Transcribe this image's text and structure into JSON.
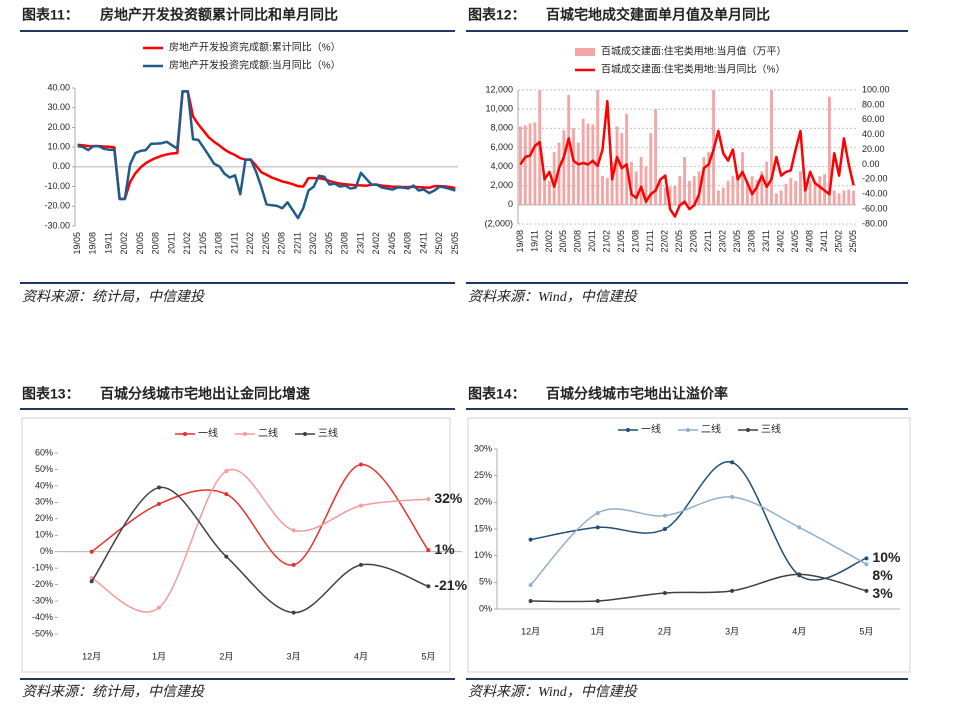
{
  "chart_data": [
    {
      "type": "line",
      "figure": "图表11：",
      "title": "房地产开发投资额累计同比和单月同比",
      "source": "资料来源：统计局，中信建投",
      "categories": [
        "19/05",
        null,
        null,
        "19/08",
        null,
        null,
        "19/11",
        null,
        null,
        "20/02",
        null,
        null,
        "20/05",
        null,
        null,
        "20/08",
        null,
        null,
        "20/11",
        null,
        null,
        "21/02",
        null,
        null,
        "21/05",
        null,
        null,
        "21/08",
        null,
        null,
        "21/11",
        null,
        null,
        "22/02",
        null,
        null,
        "22/05",
        null,
        null,
        "22/08",
        null,
        null,
        "22/11",
        null,
        null,
        "23/02",
        null,
        null,
        "23/05",
        null,
        null,
        "23/08",
        null,
        null,
        "23/11",
        null,
        null,
        "24/02",
        null,
        null,
        "24/05",
        null,
        null,
        "24/08",
        null,
        null,
        "24/11",
        null,
        null,
        "25/02",
        null,
        null,
        "25/05"
      ],
      "series": [
        {
          "name": "房地产开发投资完成额:累计同比（%）",
          "color": "#ff0000",
          "width": 2.5,
          "values": [
            11.2,
            10.9,
            10.6,
            10.5,
            10.5,
            10.3,
            10.2,
            9.9,
            -16.3,
            -16.3,
            -7.7,
            -3.3,
            -0.3,
            1.9,
            3.4,
            4.6,
            5.6,
            6.3,
            6.8,
            7.0,
            38.3,
            38.3,
            25.6,
            21.6,
            18.3,
            15.0,
            12.7,
            10.9,
            8.8,
            7.2,
            6.0,
            4.4,
            3.7,
            3.7,
            0.7,
            -2.7,
            -4.0,
            -5.4,
            -6.4,
            -7.4,
            -8.0,
            -8.8,
            -9.8,
            -10.0,
            -5.7,
            -5.7,
            -5.8,
            -6.2,
            -7.2,
            -7.9,
            -8.5,
            -8.8,
            -9.1,
            -9.3,
            -9.4,
            -9.6,
            -9.0,
            -9.0,
            -9.5,
            -9.8,
            -10.1,
            -10.1,
            -10.2,
            -10.2,
            -10.1,
            -10.3,
            -10.4,
            -10.6,
            -9.8,
            -9.8,
            -9.9,
            -10.3,
            -10.7
          ]
        },
        {
          "name": "房地产开发投资完成额:当月同比（%）",
          "color": "#1f5c8b",
          "width": 2.5,
          "values": [
            10.5,
            10.1,
            8.5,
            10.5,
            10.5,
            9.2,
            8.7,
            8.6,
            -16.3,
            -16.3,
            1.2,
            7.0,
            8.1,
            8.5,
            11.7,
            11.8,
            12.0,
            12.7,
            10.9,
            9.3,
            38.3,
            38.3,
            14.0,
            13.7,
            9.8,
            5.8,
            1.6,
            0.3,
            -3.5,
            -5.4,
            -4.3,
            -13.9,
            3.7,
            3.7,
            -2.4,
            -10.1,
            -19,
            -19.5,
            -19.8,
            -21,
            -18,
            -22,
            -26,
            -21,
            -12,
            -10,
            -4.5,
            -5,
            -9,
            -8.5,
            -10,
            -9.5,
            -11,
            -10.5,
            -3,
            -6,
            -9,
            -9,
            -10.5,
            -11,
            -11.5,
            -10.5,
            -10.5,
            -11,
            -9.5,
            -12,
            -11.5,
            -13.3,
            -12,
            -10,
            -10.5,
            -11.2,
            -12
          ]
        }
      ],
      "ylim": [
        -30,
        40
      ],
      "yticks": [
        {
          "value": -30,
          "label": "-30.00"
        },
        {
          "value": -20,
          "label": "-20.00"
        },
        {
          "value": -10,
          "label": "-10.00"
        },
        {
          "value": 0,
          "label": "0.00"
        },
        {
          "value": 10,
          "label": "10.00"
        },
        {
          "value": 20,
          "label": "20.00"
        },
        {
          "value": 30,
          "label": "30.00"
        },
        {
          "value": 40,
          "label": "40.00"
        }
      ],
      "grid": false
    },
    {
      "type": "combo",
      "figure": "图表12：",
      "title": "百城宅地成交建面单月值及单月同比",
      "source": "资料来源：Wind，中信建投",
      "categories": [
        "19/08",
        null,
        null,
        "19/11",
        null,
        null,
        "20/02",
        null,
        null,
        "20/05",
        null,
        null,
        "20/08",
        null,
        null,
        "20/11",
        null,
        null,
        "21/02",
        null,
        null,
        "21/05",
        null,
        null,
        "21/08",
        null,
        null,
        "21/11",
        null,
        null,
        "22/02",
        null,
        null,
        "22/05",
        null,
        null,
        "22/08",
        null,
        null,
        "22/11",
        null,
        null,
        "23/02",
        null,
        null,
        "23/05",
        null,
        null,
        "23/08",
        null,
        null,
        "23/11",
        null,
        null,
        "24/02",
        null,
        null,
        "24/05",
        null,
        null,
        "24/08",
        null,
        null,
        "24/11",
        null,
        null,
        "25/02",
        null,
        null,
        "25/05"
      ],
      "series": [
        {
          "name": "百城成交建面:住宅类用地:当月值（万平）",
          "type": "bar",
          "color": "#f4a6a6",
          "values": [
            8200,
            8300,
            8500,
            8600,
            12000,
            3000,
            2500,
            5500,
            6500,
            7800,
            11500,
            8000,
            6500,
            9000,
            8500,
            8400,
            12000,
            3000,
            2800,
            4500,
            8200,
            7500,
            9500,
            4500,
            3500,
            5000,
            4000,
            7500,
            10000,
            2500,
            1800,
            1900,
            2000,
            3000,
            5000,
            2500,
            3000,
            3500,
            5000,
            5500,
            12000,
            1500,
            1800,
            2500,
            3000,
            3200,
            5500,
            2500,
            3000,
            2600,
            3500,
            4500,
            12000,
            1200,
            1500,
            2200,
            2800,
            2500,
            3500,
            1800,
            2500,
            2400,
            3000,
            3200,
            11300,
            1500,
            1200,
            1500,
            1600,
            1500
          ]
        },
        {
          "name": "百城成交建面:住宅类用地:当月同比（%）",
          "type": "line",
          "axis": "y2",
          "color": "#ff0000",
          "width": 2.5,
          "values": [
            0,
            10,
            12,
            25,
            30,
            -20,
            -10,
            -30,
            -5,
            10,
            35,
            5,
            0,
            2,
            0,
            5,
            -2,
            20,
            85,
            -20,
            10,
            -5,
            0,
            -40,
            -45,
            -30,
            -50,
            -40,
            -35,
            -20,
            -15,
            -60,
            -70,
            -55,
            -50,
            -60,
            -55,
            -40,
            -5,
            0,
            20,
            45,
            15,
            5,
            20,
            -20,
            -10,
            -25,
            -40,
            -30,
            -15,
            -30,
            -20,
            10,
            -15,
            -10,
            -8,
            20,
            45,
            -35,
            -10,
            -25,
            -30,
            -35,
            -40,
            15,
            -15,
            35,
            0,
            -28
          ]
        }
      ],
      "ylim": [
        -2000,
        12000
      ],
      "yticks": [
        {
          "value": -2000,
          "label": "(2,000)"
        },
        0,
        {
          "value": 2000,
          "label": "2,000"
        },
        {
          "value": 4000,
          "label": "4,000"
        },
        {
          "value": 6000,
          "label": "6,000"
        },
        {
          "value": 8000,
          "label": "8,000"
        },
        {
          "value": 10000,
          "label": "10,000"
        },
        {
          "value": 12000,
          "label": "12,000"
        }
      ],
      "y2lim": [
        -80,
        100
      ],
      "y2ticks": [
        {
          "value": -80,
          "label": "-80.00"
        },
        {
          "value": -60,
          "label": "-60.00"
        },
        {
          "value": -40,
          "label": "-40.00"
        },
        {
          "value": -20,
          "label": "-20.00"
        },
        {
          "value": 0,
          "label": "0.00"
        },
        {
          "value": 20,
          "label": "20.00"
        },
        {
          "value": 40,
          "label": "40.00"
        },
        {
          "value": 60,
          "label": "60.00"
        },
        {
          "value": 80,
          "label": "80.00"
        },
        {
          "value": 100,
          "label": "100.00"
        }
      ],
      "grid": true
    },
    {
      "type": "line",
      "smooth": true,
      "markers": true,
      "figure": "图表13：",
      "title": "百城分线城市宅地出让金同比增速",
      "source": "资料来源：统计局，中信建投",
      "categories": [
        "12月",
        "1月",
        "2月",
        "3月",
        "4月",
        "5月"
      ],
      "series": [
        {
          "name": "一线",
          "color": "#e8312f",
          "width": 1.5,
          "values": [
            0,
            29,
            35,
            -8,
            53,
            1
          ],
          "value_labels": [
            null,
            null,
            null,
            null,
            null,
            "1%"
          ]
        },
        {
          "name": "二线",
          "color": "#f79a9a",
          "width": 1.5,
          "values": [
            -16,
            -34,
            49,
            13,
            28,
            32
          ],
          "value_labels": [
            null,
            null,
            null,
            null,
            null,
            "32%"
          ]
        },
        {
          "name": "三线",
          "color": "#404040",
          "width": 1.5,
          "values": [
            -18,
            39,
            -3,
            -37,
            -8,
            -21
          ],
          "value_labels": [
            null,
            null,
            null,
            null,
            null,
            "-21%"
          ]
        }
      ],
      "label_color": "#e8312f",
      "ylim": [
        -50,
        60
      ],
      "yticks": [
        {
          "value": -50,
          "label": "-50%"
        },
        {
          "value": -40,
          "label": "-40%"
        },
        {
          "value": -30,
          "label": "-30%"
        },
        {
          "value": -20,
          "label": "-20%"
        },
        {
          "value": -10,
          "label": "-10%"
        },
        {
          "value": 0,
          "label": "0%"
        },
        {
          "value": 10,
          "label": "10%"
        },
        {
          "value": 20,
          "label": "20%"
        },
        {
          "value": 30,
          "label": "30%"
        },
        {
          "value": 40,
          "label": "40%"
        },
        {
          "value": 50,
          "label": "50%"
        },
        {
          "value": 60,
          "label": "60%"
        }
      ],
      "grid": false
    },
    {
      "type": "line",
      "smooth": true,
      "markers": true,
      "figure": "图表14：",
      "title": "百城分线城市宅地出让溢价率",
      "source": "资料来源：Wind，中信建投",
      "categories": [
        "12月",
        "1月",
        "2月",
        "3月",
        "4月",
        "5月"
      ],
      "series": [
        {
          "name": "一线",
          "color": "#1f4e79",
          "width": 1.5,
          "values": [
            13,
            15.3,
            15,
            27.5,
            6.3,
            9.5
          ],
          "value_labels": [
            null,
            null,
            null,
            null,
            null,
            "10%"
          ]
        },
        {
          "name": "二线",
          "color": "#8fb0cf",
          "width": 1.5,
          "values": [
            4.5,
            18,
            17.5,
            21,
            15.3,
            8.4
          ],
          "value_labels": [
            null,
            null,
            null,
            null,
            null,
            "8%"
          ]
        },
        {
          "name": "三线",
          "color": "#404040",
          "width": 1.5,
          "values": [
            1.5,
            1.5,
            3,
            3.4,
            6.5,
            3.4
          ],
          "value_labels": [
            null,
            null,
            null,
            null,
            null,
            "3%"
          ]
        }
      ],
      "label_color": "#1f4e79",
      "ylim": [
        0,
        30
      ],
      "yticks": [
        {
          "value": 0,
          "label": "0%"
        },
        {
          "value": 5,
          "label": "5%"
        },
        {
          "value": 10,
          "label": "10%"
        },
        {
          "value": 15,
          "label": "15%"
        },
        {
          "value": 20,
          "label": "20%"
        },
        {
          "value": 25,
          "label": "25%"
        },
        {
          "value": 30,
          "label": "30%"
        }
      ],
      "grid": false
    }
  ]
}
